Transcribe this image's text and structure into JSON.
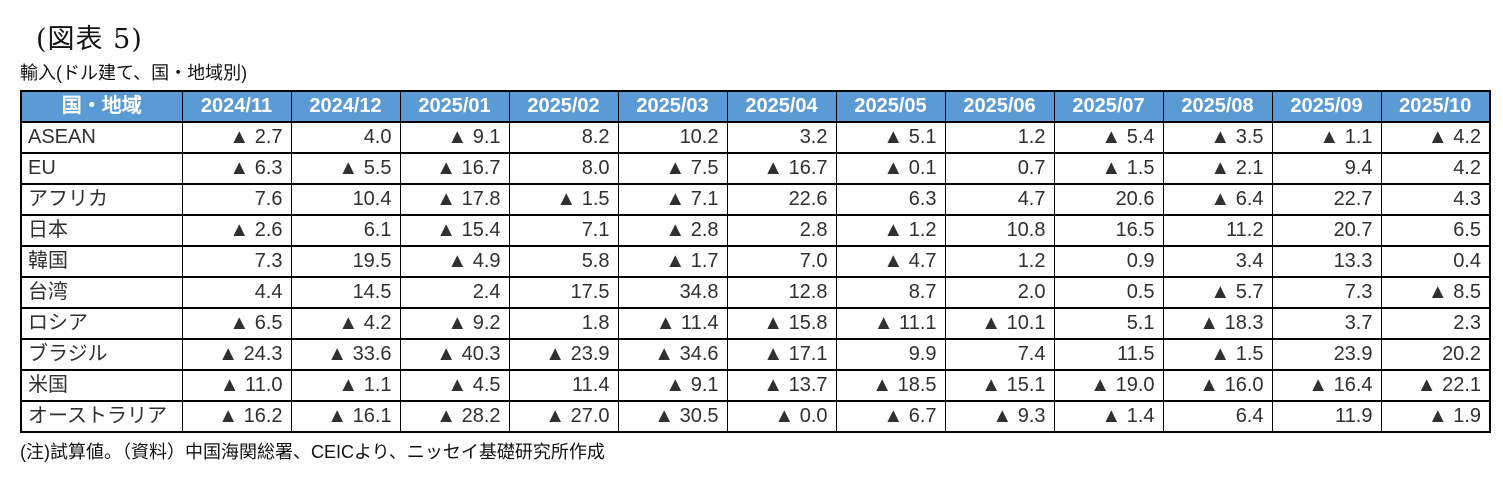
{
  "page": {
    "title": "(図表 5)",
    "subtitle": "輸入(ドル建て、国・地域別)",
    "note": "(注)試算値。（資料）中国海関総署、CEICより、ニッセイ基礎研究所作成"
  },
  "colors": {
    "header_bg": "#5B9BD5",
    "header_text": "#FFFFFF",
    "border": "#000000",
    "cell_text": "#303030"
  },
  "negative_marker": "▲",
  "chart_data": {
    "type": "table",
    "title": "輸入(ドル建て、国・地域別)",
    "corner_header": "国・地域",
    "columns": [
      "2024/11",
      "2024/12",
      "2025/01",
      "2025/02",
      "2025/03",
      "2025/04",
      "2025/05",
      "2025/06",
      "2025/07",
      "2025/08",
      "2025/09",
      "2025/10"
    ],
    "value_format": "negative values shown with ▲ prefix, one decimal place",
    "rows": [
      {
        "label": "ASEAN",
        "values": [
          -2.7,
          4.0,
          -9.1,
          8.2,
          10.2,
          3.2,
          -5.1,
          1.2,
          -5.4,
          -3.5,
          -1.1,
          -4.2
        ]
      },
      {
        "label": "EU",
        "values": [
          -6.3,
          -5.5,
          -16.7,
          8.0,
          -7.5,
          -16.7,
          -0.1,
          0.7,
          -1.5,
          -2.1,
          9.4,
          4.2
        ]
      },
      {
        "label": "アフリカ",
        "values": [
          7.6,
          10.4,
          -17.8,
          -1.5,
          -7.1,
          22.6,
          6.3,
          4.7,
          20.6,
          -6.4,
          22.7,
          4.3
        ]
      },
      {
        "label": "日本",
        "values": [
          -2.6,
          6.1,
          -15.4,
          7.1,
          -2.8,
          2.8,
          -1.2,
          10.8,
          16.5,
          11.2,
          20.7,
          6.5
        ]
      },
      {
        "label": "韓国",
        "values": [
          7.3,
          19.5,
          -4.9,
          5.8,
          -1.7,
          7.0,
          -4.7,
          1.2,
          0.9,
          3.4,
          13.3,
          0.4
        ]
      },
      {
        "label": "台湾",
        "values": [
          4.4,
          14.5,
          2.4,
          17.5,
          34.8,
          12.8,
          8.7,
          2.0,
          0.5,
          -5.7,
          7.3,
          -8.5
        ]
      },
      {
        "label": "ロシア",
        "values": [
          -6.5,
          -4.2,
          -9.2,
          1.8,
          -11.4,
          -15.8,
          -11.1,
          -10.1,
          5.1,
          -18.3,
          3.7,
          2.3
        ]
      },
      {
        "label": "ブラジル",
        "values": [
          -24.3,
          -33.6,
          -40.3,
          -23.9,
          -34.6,
          -17.1,
          9.9,
          7.4,
          11.5,
          -1.5,
          23.9,
          20.2
        ]
      },
      {
        "label": "米国",
        "values": [
          -11.0,
          -1.1,
          -4.5,
          11.4,
          -9.1,
          -13.7,
          -18.5,
          -15.1,
          -19.0,
          -16.0,
          -16.4,
          -22.1
        ]
      },
      {
        "label": "オーストラリア",
        "values": [
          -16.2,
          -16.1,
          -28.2,
          -27.0,
          -30.5,
          -0.0,
          -6.7,
          -9.3,
          -1.4,
          6.4,
          11.9,
          -1.9
        ]
      }
    ]
  }
}
